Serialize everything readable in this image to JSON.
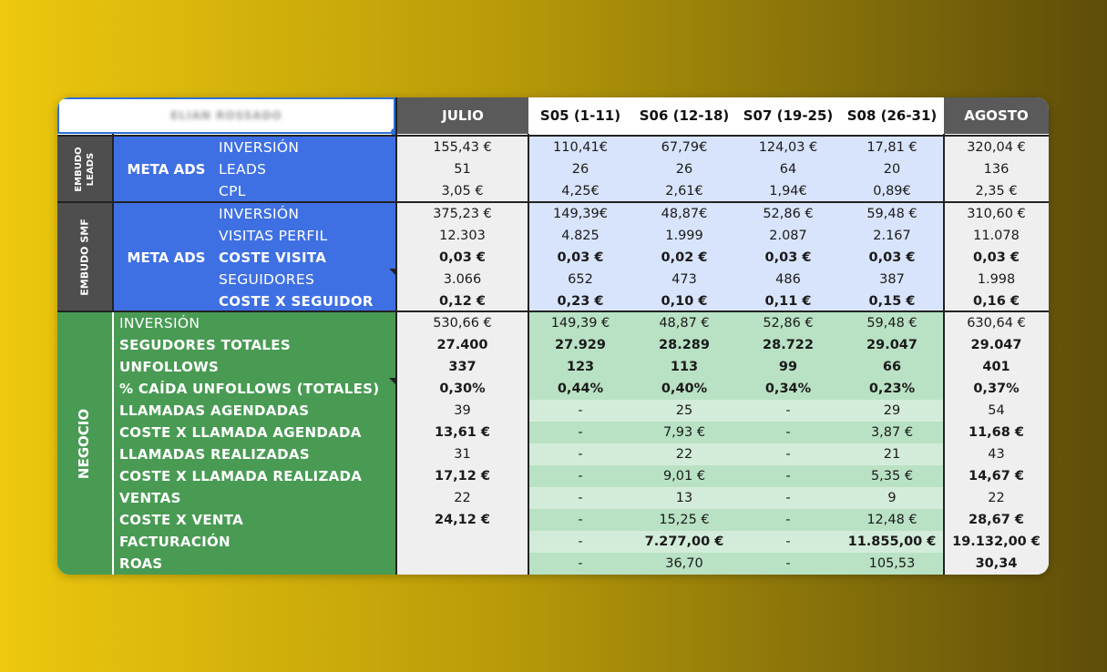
{
  "header": {
    "title": "ELIAN ROSSADO",
    "columns": [
      "JULIO",
      "S05 (1-11)",
      "S06 (12-18)",
      "S07 (19-25)",
      "S08 (26-31)",
      "AGOSTO"
    ]
  },
  "sections": [
    {
      "vertical_label": "EMBUDO LEADS",
      "group_label": "META ADS",
      "rows": [
        {
          "label": "INVERSIÓN",
          "bold": false,
          "values": [
            "155,43 €",
            "110,41€",
            "67,79€",
            "124,03 €",
            "17,81 €",
            "320,04 €"
          ]
        },
        {
          "label": "LEADS",
          "bold": false,
          "values": [
            "51",
            "26",
            "26",
            "64",
            "20",
            "136"
          ]
        },
        {
          "label": "CPL",
          "bold": false,
          "values": [
            "3,05 €",
            "4,25€",
            "2,61€",
            "1,94€",
            "0,89€",
            "2,35 €"
          ]
        }
      ]
    },
    {
      "vertical_label": "EMBUDO SMF",
      "group_label": "META ADS",
      "rows": [
        {
          "label": "INVERSIÓN",
          "bold": false,
          "values": [
            "375,23 €",
            "149,39€",
            "48,87€",
            "52,86 €",
            "59,48 €",
            "310,60 €"
          ]
        },
        {
          "label": "VISITAS PERFIL",
          "bold": false,
          "values": [
            "12.303",
            "4.825",
            "1.999",
            "2.087",
            "2.167",
            "11.078"
          ]
        },
        {
          "label": "COSTE VISITA",
          "bold": true,
          "values": [
            "0,03 €",
            "0,03 €",
            "0,02 €",
            "0,03 €",
            "0,03 €",
            "0,03 €"
          ]
        },
        {
          "label": "SEGUIDORES",
          "bold": false,
          "values": [
            "3.066",
            "652",
            "473",
            "486",
            "387",
            "1.998"
          ]
        },
        {
          "label": "COSTE X SEGUIDOR",
          "bold": true,
          "values": [
            "0,12 €",
            "0,23 €",
            "0,10 €",
            "0,11 €",
            "0,15 €",
            "0,16 €"
          ]
        }
      ]
    },
    {
      "vertical_label": "NEGOCIO",
      "rows": [
        {
          "label": "INVERSIÓN",
          "bold": false,
          "values": [
            "530,66 €",
            "149,39 €",
            "48,87 €",
            "52,86 €",
            "59,48 €",
            "630,64 €"
          ]
        },
        {
          "label": "SEGUDORES TOTALES",
          "bold": true,
          "values": [
            "27.400",
            "27.929",
            "28.289",
            "28.722",
            "29.047",
            "29.047"
          ]
        },
        {
          "label": "UNFOLLOWS",
          "bold": true,
          "values": [
            "337",
            "123",
            "113",
            "99",
            "66",
            "401"
          ]
        },
        {
          "label": "% CAÍDA UNFOLLOWS (TOTALES)",
          "bold": true,
          "values": [
            "0,30%",
            "0,44%",
            "0,40%",
            "0,34%",
            "0,23%",
            "0,37%"
          ]
        },
        {
          "label": "LLAMADAS AGENDADAS",
          "bold": true,
          "values": [
            "39",
            "",
            "25",
            "",
            "29",
            "54"
          ]
        },
        {
          "label": "COSTE X LLAMADA AGENDADA",
          "bold": true,
          "values": [
            "13,61 €",
            "-",
            "7,93 €",
            "-",
            "3,87 €",
            "11,68 €"
          ]
        },
        {
          "label": "LLAMADAS REALIZADAS",
          "bold": true,
          "values": [
            "31",
            "-",
            "22",
            "-",
            "21",
            "43"
          ]
        },
        {
          "label": "COSTE X LLAMADA REALIZADA",
          "bold": true,
          "values": [
            "17,12 €",
            "-",
            "9,01 €",
            "-",
            "5,35 €",
            "14,67 €"
          ]
        },
        {
          "label": "VENTAS",
          "bold": true,
          "values": [
            "22",
            "-",
            "13",
            "-",
            "9",
            "22"
          ]
        },
        {
          "label": "COSTE X VENTA",
          "bold": true,
          "values": [
            "24,12 €",
            "-",
            "15,25 €",
            "-",
            "12,48 €",
            "28,67 €"
          ]
        },
        {
          "label": "FACTURACIÓN",
          "bold": true,
          "values": [
            "",
            "-",
            "7.277,00 €",
            "-",
            "11.855,00 €",
            "19.132,00 €"
          ]
        },
        {
          "label": "ROAS",
          "bold": true,
          "values": [
            "",
            "-",
            "36,70",
            "-",
            "105,53",
            "30,34"
          ]
        }
      ]
    }
  ],
  "dash_cells": {
    "r4c1": "-",
    "r4c3": "-"
  },
  "colors": {
    "blue": "#3f70e3",
    "green": "#499b54",
    "dark_grey": "#5a5a5a",
    "light_blue": "#d8e4fb",
    "light_green": "#b9e2c4",
    "lighter_green": "#d3ecd9",
    "grey_cell": "#efefef"
  }
}
